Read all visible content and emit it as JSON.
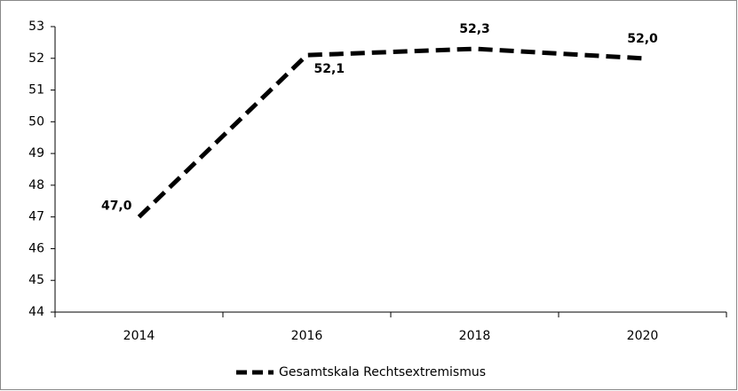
{
  "chart_data": {
    "type": "line",
    "categories": [
      "2014",
      "2016",
      "2018",
      "2020"
    ],
    "series": [
      {
        "name": "Gesamtskala Rechtsextremismus",
        "color": "#000000",
        "values": [
          47.0,
          52.1,
          52.3,
          52.0
        ],
        "value_labels": [
          "47,0",
          "52,1",
          "52,3",
          "52,0"
        ]
      }
    ],
    "ylim": [
      44,
      53
    ],
    "yticks": [
      44,
      45,
      46,
      47,
      48,
      49,
      50,
      51,
      52,
      53
    ],
    "legend": "bottom",
    "grid": false
  }
}
